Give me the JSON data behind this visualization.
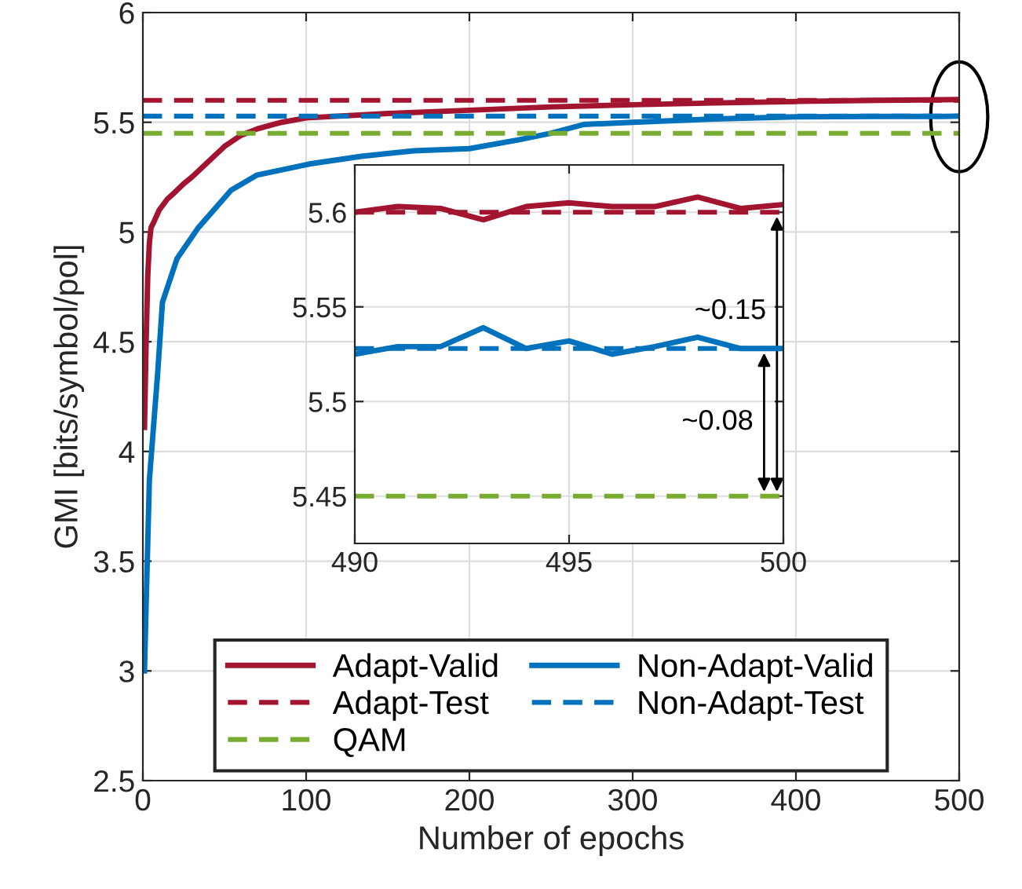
{
  "chart_data": [
    {
      "type": "line",
      "xlabel": "Number of epochs",
      "ylabel": "GMI [bits/symbol/pol]",
      "xlim": [
        0,
        500
      ],
      "ylim": [
        2.5,
        6
      ],
      "xticks": [
        0,
        100,
        200,
        300,
        400,
        500
      ],
      "yticks": [
        2.5,
        3,
        3.5,
        4,
        4.5,
        5,
        5.5,
        6
      ],
      "grid": true,
      "legend": "bottom",
      "series": [
        {
          "name": "Adapt-Valid",
          "color": "#a2142f",
          "line_style": "solid",
          "x": [
            1,
            2,
            3,
            4,
            5,
            7,
            10,
            15,
            18,
            25,
            30,
            40,
            50,
            60,
            70,
            85,
            100,
            150,
            200,
            250,
            300,
            350,
            400,
            450,
            490,
            500
          ],
          "values": [
            4.11,
            4.5,
            4.8,
            4.95,
            5.02,
            5.05,
            5.1,
            5.15,
            5.17,
            5.22,
            5.25,
            5.32,
            5.39,
            5.44,
            5.47,
            5.5,
            5.52,
            5.54,
            5.555,
            5.57,
            5.58,
            5.588,
            5.595,
            5.6,
            5.603,
            5.604
          ]
        },
        {
          "name": "Non-Adapt-Valid",
          "color": "#0072bd",
          "line_style": "solid",
          "x": [
            1,
            2,
            4,
            9,
            12,
            21,
            34,
            54,
            70,
            102,
            134,
            166,
            200,
            230,
            250,
            270,
            300,
            350,
            400,
            450,
            490,
            500
          ],
          "values": [
            3.0,
            3.3,
            3.87,
            4.35,
            4.68,
            4.88,
            5.02,
            5.19,
            5.26,
            5.31,
            5.345,
            5.37,
            5.38,
            5.42,
            5.45,
            5.49,
            5.5,
            5.515,
            5.525,
            5.527,
            5.527,
            5.528
          ]
        },
        {
          "name": "Adapt-Test",
          "color": "#a2142f",
          "line_style": "dashed",
          "x": [
            0,
            500
          ],
          "values": [
            5.6,
            5.6
          ]
        },
        {
          "name": "Non-Adapt-Test",
          "color": "#0072bd",
          "line_style": "dashed",
          "x": [
            0,
            500
          ],
          "values": [
            5.528,
            5.528
          ]
        },
        {
          "name": "QAM",
          "color": "#77ac30",
          "line_style": "dashed",
          "x": [
            0,
            500
          ],
          "values": [
            5.45,
            5.45
          ]
        }
      ]
    },
    {
      "type": "line",
      "xlim": [
        490,
        500
      ],
      "ylim": [
        5.425,
        5.625
      ],
      "xticks": [
        490,
        495,
        500
      ],
      "yticks": [
        5.45,
        5.5,
        5.55,
        5.6
      ],
      "grid": true,
      "annotations": [
        "~0.15",
        "~0.08"
      ],
      "series": [
        {
          "color": "#a2142f",
          "line_style": "solid",
          "x": [
            490,
            491,
            492,
            493,
            494,
            495,
            496,
            497,
            498,
            499,
            500
          ],
          "values": [
            5.6,
            5.603,
            5.602,
            5.596,
            5.603,
            5.605,
            5.603,
            5.603,
            5.608,
            5.602,
            5.604
          ]
        },
        {
          "color": "#0072bd",
          "line_style": "solid",
          "x": [
            490,
            491,
            492,
            493,
            494,
            495,
            496,
            497,
            498,
            499,
            500
          ],
          "values": [
            5.525,
            5.529,
            5.529,
            5.539,
            5.528,
            5.532,
            5.525,
            5.529,
            5.534,
            5.528,
            5.528
          ]
        },
        {
          "color": "#a2142f",
          "line_style": "dashed",
          "x": [
            490,
            500
          ],
          "values": [
            5.6,
            5.6
          ]
        },
        {
          "color": "#0072bd",
          "line_style": "dashed",
          "x": [
            490,
            500
          ],
          "values": [
            5.528,
            5.528
          ]
        },
        {
          "color": "#77ac30",
          "line_style": "dashed",
          "x": [
            490,
            500
          ],
          "values": [
            5.45,
            5.45
          ]
        }
      ]
    }
  ]
}
